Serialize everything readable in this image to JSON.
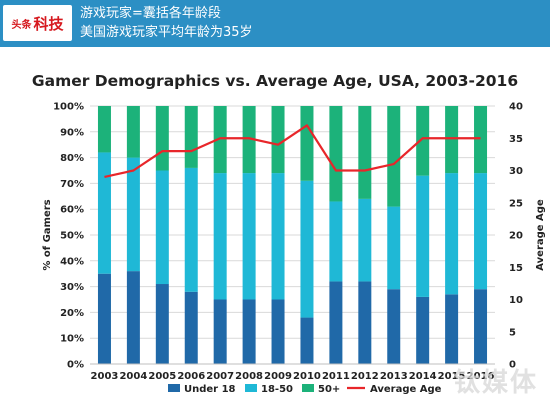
{
  "header": {
    "logo_top": "头条",
    "logo_main": "科技",
    "line1": "游戏玩家=囊括各年龄段",
    "line2": "美国游戏玩家平均年龄为35岁"
  },
  "watermark": "钛媒体",
  "colors": {
    "header_bg": "#2c8fc4",
    "under18": "#2069a8",
    "age18_50": "#1fb8d6",
    "age50plus": "#1cb27a",
    "avg_line": "#e8262a"
  },
  "chart_data": {
    "type": "bar",
    "stacked": true,
    "title": "Gamer Demographics vs. Average Age, USA, 2003-2016",
    "ylabel": "% of Gamers",
    "y2label": "Average Age",
    "ylim": [
      0,
      100
    ],
    "y2lim": [
      0,
      40
    ],
    "y_ticks": [
      "0%",
      "10%",
      "20%",
      "30%",
      "40%",
      "50%",
      "60%",
      "70%",
      "80%",
      "90%",
      "100%"
    ],
    "y2_ticks": [
      "0",
      "5",
      "10",
      "15",
      "20",
      "25",
      "30",
      "35",
      "40"
    ],
    "categories": [
      "2003",
      "2004",
      "2005",
      "2006",
      "2007",
      "2008",
      "2009",
      "2010",
      "2011",
      "2012",
      "2013",
      "2014",
      "2015",
      "2016"
    ],
    "series": [
      {
        "name": "Under 18",
        "values": [
          35,
          36,
          31,
          28,
          25,
          25,
          25,
          18,
          32,
          32,
          29,
          26,
          27,
          29
        ]
      },
      {
        "name": "18-50",
        "values": [
          47,
          44,
          44,
          48,
          49,
          49,
          49,
          53,
          31,
          32,
          32,
          47,
          47,
          45
        ]
      },
      {
        "name": "50+",
        "values": [
          18,
          20,
          25,
          24,
          26,
          26,
          26,
          29,
          37,
          36,
          39,
          27,
          26,
          26
        ]
      }
    ],
    "line": {
      "name": "Average Age",
      "values": [
        29,
        30,
        33,
        33,
        35,
        35,
        34,
        37,
        30,
        30,
        31,
        35,
        35,
        35
      ]
    },
    "legend_position": "bottom",
    "grid": true
  }
}
